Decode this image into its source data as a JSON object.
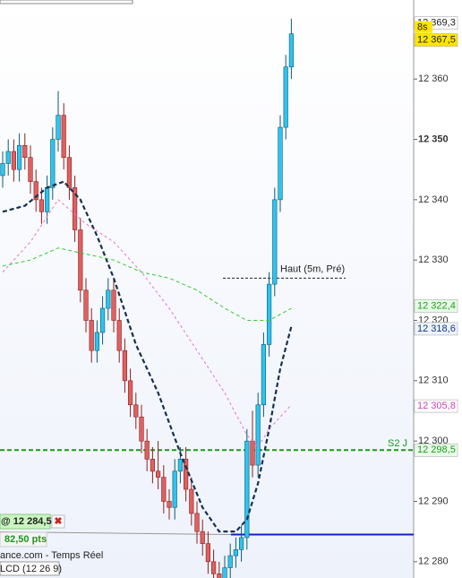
{
  "chart_data": {
    "type": "candlestick",
    "ylim": [
      12277.3,
      12373.1
    ],
    "yticks": [
      {
        "value": 12360,
        "label": "12 360"
      },
      {
        "value": 12350,
        "label": "12 350"
      },
      {
        "value": 12340,
        "label": "12 340"
      },
      {
        "value": 12330,
        "label": "12 330"
      },
      {
        "value": 12320,
        "label": "12 320"
      },
      {
        "value": 12310,
        "label": "12 310"
      },
      {
        "value": 12300,
        "label": "12 300"
      },
      {
        "value": 12290,
        "label": "12 290"
      },
      {
        "value": 12280,
        "label": "12 280"
      }
    ],
    "bold_tick": 12350,
    "up_color": "#2ec4ee",
    "down_color": "#e06060",
    "open": [
      12344,
      12346,
      12348,
      12345,
      12349,
      12347,
      12343,
      12340,
      12338,
      12342,
      12350,
      12354,
      12347,
      12342,
      12335,
      12325,
      12320,
      12315,
      12318,
      12322,
      12325,
      12320,
      12315,
      12310,
      12306,
      12304,
      12300,
      12297,
      12295,
      12294,
      12290,
      12289,
      12295,
      12297,
      12292,
      12288,
      12285,
      12283,
      12280,
      12278,
      12277,
      12279,
      12281,
      12282,
      12284,
      12300,
      12296,
      12306,
      12316,
      12326,
      12340,
      12352,
      12362
    ],
    "high": [
      12348,
      12350,
      12350,
      12351,
      12351,
      12349,
      12345,
      12342,
      12344,
      12352,
      12358,
      12356,
      12349,
      12344,
      12337,
      12327,
      12322,
      12320,
      12324,
      12327,
      12327,
      12322,
      12317,
      12312,
      12308,
      12306,
      12302,
      12299,
      12300,
      12296,
      12292,
      12297,
      12299,
      12299,
      12294,
      12290,
      12287,
      12285,
      12282,
      12280,
      12281,
      12283,
      12284,
      12286,
      12302,
      12305,
      12308,
      12318,
      12328,
      12342,
      12354,
      12364,
      12370
    ],
    "low": [
      12342,
      12344,
      12343,
      12343,
      12345,
      12341,
      12338,
      12336,
      12336,
      12340,
      12348,
      12345,
      12340,
      12333,
      12323,
      12318,
      12313,
      12313,
      12316,
      12320,
      12318,
      12313,
      12308,
      12304,
      12302,
      12298,
      12295,
      12293,
      12292,
      12288,
      12287,
      12287,
      12293,
      12290,
      12286,
      12283,
      12281,
      12278,
      12276,
      12275,
      12275,
      12277,
      12279,
      12280,
      12282,
      12294,
      12294,
      12304,
      12314,
      12324,
      12338,
      12350,
      12360
    ],
    "close": [
      12346,
      12348,
      12345,
      12349,
      12347,
      12343,
      12340,
      12338,
      12342,
      12350,
      12354,
      12347,
      12342,
      12335,
      12325,
      12320,
      12315,
      12318,
      12322,
      12325,
      12320,
      12315,
      12310,
      12306,
      12304,
      12300,
      12297,
      12295,
      12294,
      12290,
      12289,
      12295,
      12297,
      12292,
      12288,
      12285,
      12283,
      12280,
      12278,
      12277,
      12279,
      12281,
      12282,
      12284,
      12300,
      12296,
      12306,
      12316,
      12326,
      12340,
      12352,
      12362,
      12367.5
    ],
    "moving_averages": [
      {
        "color": "#14304f",
        "dash": "5,3",
        "width": 2.2,
        "x": [
          0,
          4,
          8,
          11,
          14,
          17,
          20,
          24,
          28,
          32,
          36,
          39,
          42,
          44,
          46,
          48,
          50,
          52
        ],
        "values": [
          12338,
          12339,
          12342,
          12343,
          12340,
          12334,
          12327,
          12316,
          12308,
          12298,
          12289,
          12285,
          12285,
          12287,
          12293,
          12302,
          12312,
          12319
        ]
      },
      {
        "color": "#f070c8",
        "dash": "3,3",
        "width": 1,
        "x": [
          0,
          5,
          10,
          15,
          20,
          25,
          30,
          35,
          40,
          44,
          46,
          48,
          50,
          52
        ],
        "values": [
          12328,
          12333,
          12340,
          12336,
          12333,
          12328,
          12322,
          12315,
          12308,
          12301,
          12299,
          12302,
          12304,
          12306
        ]
      },
      {
        "color": "#33cc33",
        "dash": "4,3",
        "width": 1,
        "x": [
          0,
          5,
          10,
          15,
          20,
          25,
          30,
          35,
          40,
          44,
          48,
          52
        ],
        "values": [
          12329,
          12330,
          12332,
          12331,
          12330,
          12328,
          12327,
          12325,
          12322,
          12320,
          12320,
          12322
        ]
      }
    ],
    "level_lines": [
      {
        "value": 12298.5,
        "label": "S2 J",
        "color": "#1a9a1a"
      },
      {
        "value": 12327,
        "label": "Haut (5m, Pré)",
        "color": "#222222"
      }
    ],
    "position_line": 12284.5,
    "price_labels": [
      {
        "value": 12369.3,
        "label": "12 369,3",
        "bg": "#ffffff",
        "fg": "#222222"
      },
      {
        "value": 12367.5,
        "label": "12 367,5",
        "bg": "#ffe500",
        "fg": "#222222"
      },
      {
        "value": 12322.4,
        "label": "12 322,4",
        "bg": "#e6ffe6",
        "fg": "#1e9a1e"
      },
      {
        "value": 12318.6,
        "label": "12 318,6",
        "bg": "#eef3ff",
        "fg": "#123a7a"
      },
      {
        "value": 12305.8,
        "label": "12 305,8",
        "bg": "#ffffff",
        "fg": "#d040c0"
      },
      {
        "value": 12298.5,
        "label": "12 298,5",
        "bg": "#eaffea",
        "fg": "#1a9a1a"
      }
    ],
    "countdown": "8s",
    "order": {
      "label": "@ 12 284,5",
      "points": "82,50 pts"
    },
    "source": "ance.com - Temps Réel",
    "indicator": "LCD (12 26 9)"
  }
}
